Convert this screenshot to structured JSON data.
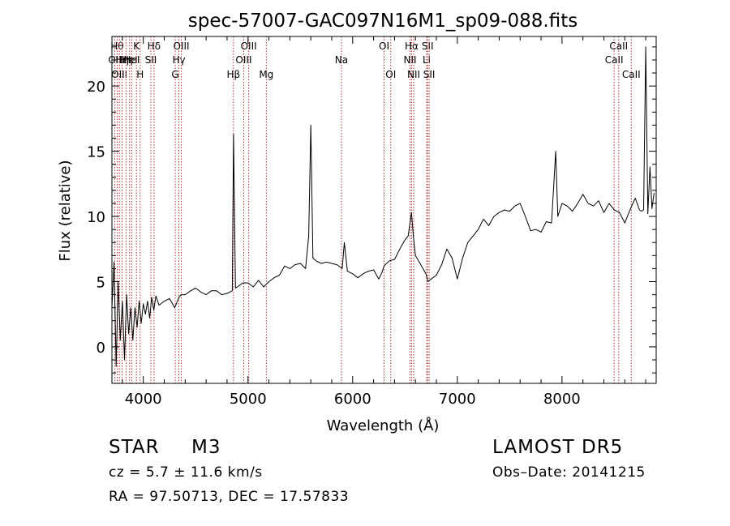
{
  "chart_data": {
    "type": "line",
    "title": "spec-57007-GAC097N16M1_sp09-088.fits",
    "xlabel": "Wavelength (Å)",
    "ylabel": "Flux (relative)",
    "xlim": [
      3700,
      8900
    ],
    "ylim": [
      -2.8,
      23.8
    ],
    "xticks": [
      4000,
      5000,
      6000,
      7000,
      8000
    ],
    "yticks": [
      0,
      5,
      10,
      15,
      20
    ],
    "series": [
      {
        "x": [
          3700,
          3720,
          3740,
          3760,
          3780,
          3800,
          3820,
          3840,
          3860,
          3880,
          3900,
          3920,
          3940,
          3960,
          3980,
          4000,
          4020,
          4040,
          4060,
          4080,
          4100,
          4120,
          4150,
          4200,
          4250,
          4300,
          4340,
          4360,
          4400,
          4450,
          4500,
          4550,
          4600,
          4650,
          4700,
          4750,
          4800,
          4850,
          4862,
          4880,
          4900,
          4950,
          5000,
          5050,
          5100,
          5150,
          5200,
          5250,
          5300,
          5350,
          5400,
          5450,
          5500,
          5550,
          5580,
          5600,
          5620,
          5650,
          5700,
          5750,
          5800,
          5850,
          5900,
          5920,
          5950,
          6000,
          6050,
          6100,
          6150,
          6200,
          6250,
          6280,
          6300,
          6350,
          6400,
          6450,
          6500,
          6530,
          6562,
          6580,
          6600,
          6650,
          6700,
          6720,
          6750,
          6800,
          6850,
          6900,
          6950,
          7000,
          7050,
          7100,
          7150,
          7200,
          7250,
          7300,
          7350,
          7400,
          7450,
          7500,
          7550,
          7600,
          7650,
          7700,
          7750,
          7800,
          7850,
          7900,
          7940,
          7960,
          8000,
          8050,
          8100,
          8150,
          8200,
          8250,
          8300,
          8350,
          8400,
          8450,
          8500,
          8550,
          8600,
          8650,
          8700,
          8740,
          8760,
          8780,
          8800,
          8820,
          8840,
          8860,
          8880
        ],
        "y": [
          3.0,
          6.5,
          -1.5,
          5.0,
          0.5,
          3.5,
          -1.0,
          4.0,
          1.0,
          3.0,
          0.5,
          3.0,
          1.5,
          3.5,
          1.8,
          3.3,
          2.5,
          3.5,
          2.2,
          3.8,
          2.8,
          3.9,
          3.2,
          3.5,
          3.7,
          3.0,
          3.8,
          4.0,
          4.0,
          4.3,
          4.5,
          4.2,
          4.0,
          4.3,
          4.3,
          4.0,
          4.1,
          4.3,
          16.3,
          4.5,
          4.6,
          4.9,
          4.9,
          4.6,
          5.1,
          4.6,
          5.0,
          5.3,
          5.5,
          6.2,
          6.0,
          6.3,
          6.4,
          6.0,
          8.5,
          17.0,
          6.8,
          6.6,
          6.4,
          6.5,
          6.4,
          6.3,
          6.0,
          8.0,
          5.8,
          5.6,
          5.3,
          5.6,
          5.8,
          5.9,
          5.2,
          5.7,
          6.2,
          6.6,
          6.7,
          7.5,
          8.2,
          8.5,
          10.3,
          8.5,
          7.0,
          6.3,
          5.6,
          5.0,
          5.2,
          5.5,
          6.3,
          7.5,
          6.8,
          5.2,
          6.8,
          8.0,
          8.5,
          9.0,
          9.8,
          9.3,
          10.0,
          10.3,
          10.5,
          10.4,
          10.8,
          11.0,
          10.0,
          8.9,
          9.0,
          8.8,
          9.6,
          9.5,
          15.0,
          10.0,
          11.0,
          10.8,
          10.4,
          11.0,
          11.7,
          11.0,
          10.8,
          11.2,
          10.3,
          11.0,
          10.5,
          10.3,
          9.5,
          10.5,
          11.4,
          10.5,
          10.4,
          10.5,
          23.0,
          10.2,
          13.8,
          10.6,
          11.8
        ]
      }
    ],
    "lines": [
      {
        "x": 3728,
        "label": "OII",
        "row": 2
      },
      {
        "x": 3750,
        "label": "Hθ",
        "row": 1
      },
      {
        "x": 3771,
        "label": "OIII",
        "row": 3
      },
      {
        "x": 3797,
        "label": "Hη",
        "row": 2
      },
      {
        "x": 3835,
        "label": "Hη",
        "row": 2
      },
      {
        "x": 3869,
        "label": "HeI",
        "row": 2
      },
      {
        "x": 3889,
        "label": "HeI",
        "row": 2
      },
      {
        "x": 3934,
        "label": "K",
        "row": 1
      },
      {
        "x": 3969,
        "label": "H",
        "row": 3
      },
      {
        "x": 4072,
        "label": "SII",
        "row": 2
      },
      {
        "x": 4102,
        "label": "Hδ",
        "row": 1
      },
      {
        "x": 4305,
        "label": "G",
        "row": 3
      },
      {
        "x": 4340,
        "label": "Hγ",
        "row": 2
      },
      {
        "x": 4363,
        "label": "OIII",
        "row": 1
      },
      {
        "x": 4861,
        "label": "Hβ",
        "row": 3
      },
      {
        "x": 4959,
        "label": "OIII",
        "row": 2
      },
      {
        "x": 5007,
        "label": "OIII",
        "row": 1
      },
      {
        "x": 5175,
        "label": "Mg",
        "row": 3
      },
      {
        "x": 5893,
        "label": "Na",
        "row": 2
      },
      {
        "x": 6300,
        "label": "OI",
        "row": 1
      },
      {
        "x": 6364,
        "label": "OI",
        "row": 3
      },
      {
        "x": 6548,
        "label": "NII",
        "row": 2
      },
      {
        "x": 6563,
        "label": "Hα",
        "row": 1
      },
      {
        "x": 6583,
        "label": "NII",
        "row": 3
      },
      {
        "x": 6707,
        "label": "Li",
        "row": 2
      },
      {
        "x": 6716,
        "label": "SII",
        "row": 1
      },
      {
        "x": 6731,
        "label": "SII",
        "row": 3
      },
      {
        "x": 8498,
        "label": "CaII",
        "row": 2
      },
      {
        "x": 8542,
        "label": "CaII",
        "row": 1
      },
      {
        "x": 8662,
        "label": "CaII",
        "row": 3
      }
    ],
    "grid": false,
    "legend": "none"
  },
  "info": {
    "class": "STAR",
    "subclass": "M3",
    "survey": "LAMOST DR5",
    "cz": "cz = 5.7 ± 11.6 km/s",
    "obs_date": "Obs–Date: 20141215",
    "coords": "RA =  97.50713, DEC =  17.57833"
  },
  "colors": {
    "spectrum": "#000000",
    "line_marker": "#b03030"
  }
}
